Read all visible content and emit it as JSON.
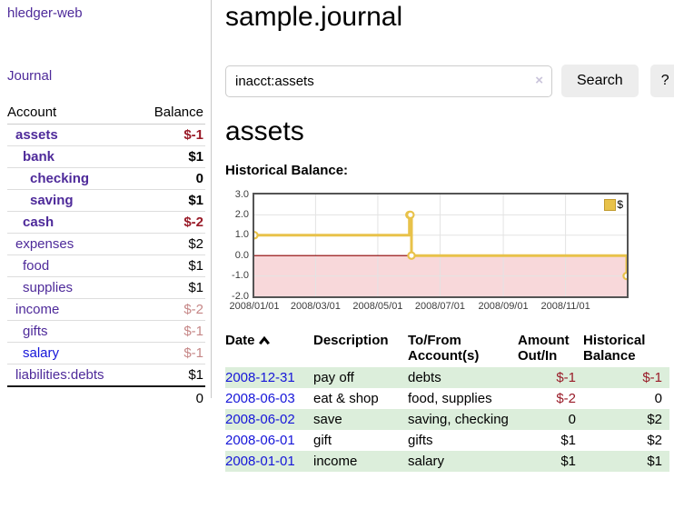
{
  "app": {
    "title": "hledger-web",
    "nav_journal": "Journal"
  },
  "colors": {
    "link_purple": "#4e2a9a",
    "link_blue": "#1616d9",
    "negative_strong": "#991b28",
    "negative_soft": "#c68787",
    "row_stripe_green": "#dceedb",
    "chart_line_gold": "#e8c24a",
    "chart_negative_region_pink": "#f8d8da",
    "chart_zero_line_red": "#8b0000",
    "chart_border_gray": "#545454",
    "button_gray": "#ededed"
  },
  "sidebar": {
    "accounts_table": {
      "headers": {
        "account": "Account",
        "balance": "Balance"
      },
      "rows": [
        {
          "account": "assets",
          "balance": "$-1",
          "level": 1,
          "bold": true,
          "balance_class": "neg-strong",
          "link_class": "purple"
        },
        {
          "account": "bank",
          "balance": "$1",
          "level": 2,
          "bold": true,
          "balance_class": "",
          "link_class": "purple"
        },
        {
          "account": "checking",
          "balance": "0",
          "level": 3,
          "bold": true,
          "balance_class": "",
          "link_class": "purple"
        },
        {
          "account": "saving",
          "balance": "$1",
          "level": 3,
          "bold": true,
          "balance_class": "",
          "link_class": "purple"
        },
        {
          "account": "cash",
          "balance": "$-2",
          "level": 2,
          "bold": true,
          "balance_class": "neg-strong",
          "link_class": "purple"
        },
        {
          "account": "expenses",
          "balance": "$2",
          "level": 1,
          "bold": false,
          "balance_class": "",
          "link_class": "purple"
        },
        {
          "account": "food",
          "balance": "$1",
          "level": 2,
          "bold": false,
          "balance_class": "",
          "link_class": "purple"
        },
        {
          "account": "supplies",
          "balance": "$1",
          "level": 2,
          "bold": false,
          "balance_class": "",
          "link_class": "purple"
        },
        {
          "account": "income",
          "balance": "$-2",
          "level": 1,
          "bold": false,
          "balance_class": "neg-soft",
          "link_class": "purple"
        },
        {
          "account": "gifts",
          "balance": "$-1",
          "level": 2,
          "bold": false,
          "balance_class": "neg-soft",
          "link_class": "purple"
        },
        {
          "account": "salary",
          "balance": "$-1",
          "level": 2,
          "bold": false,
          "balance_class": "neg-soft",
          "link_class": "blue"
        },
        {
          "account": "liabilities:debts",
          "balance": "$1",
          "level": 1,
          "bold": false,
          "balance_class": "",
          "link_class": "purple"
        }
      ],
      "total": "0"
    }
  },
  "main": {
    "title": "sample.journal",
    "search": {
      "value": "inacct:assets",
      "clear_icon": "×",
      "button_label": "Search",
      "help_label": "?"
    },
    "account_heading": "assets",
    "chart_title": "Historical Balance:"
  },
  "chart_data": {
    "type": "line",
    "style": "step",
    "title": "Historical Balance:",
    "series": [
      {
        "name": "$",
        "color": "#e8c24a",
        "points": [
          {
            "date": "2008-01-01",
            "value": 1
          },
          {
            "date": "2008-06-01",
            "value": 2
          },
          {
            "date": "2008-06-02",
            "value": 2
          },
          {
            "date": "2008-06-03",
            "value": 0
          },
          {
            "date": "2008-12-31",
            "value": -1
          }
        ]
      }
    ],
    "x_range": {
      "start": "2008-01-01",
      "end": "2008-12-31",
      "days": 365
    },
    "x_ticks": [
      "2008/01/01",
      "2008/03/01",
      "2008/05/01",
      "2008/07/01",
      "2008/09/01",
      "2008/11/01"
    ],
    "y_ticks": [
      "3.0",
      "2.0",
      "1.0",
      "0.0",
      "-1.0",
      "-2.0"
    ],
    "ylim": [
      -2,
      3
    ],
    "grid": true,
    "legend": {
      "label": "$",
      "position": "top-right"
    },
    "negative_region_color": "#f8d8da",
    "zero_line_color": "#8b0000"
  },
  "register": {
    "headers": {
      "date": "Date",
      "sort_indicator": "chevron-up",
      "description": "Description",
      "tofrom": "To/From Account(s)",
      "amount": "Amount Out/In",
      "balance": "Historical Balance"
    },
    "rows": [
      {
        "date": "2008-12-31",
        "description": "pay off",
        "accounts": "debts",
        "amount": "$-1",
        "amount_neg": true,
        "balance": "$-1",
        "balance_neg": true,
        "striped": true
      },
      {
        "date": "2008-06-03",
        "description": "eat & shop",
        "accounts": "food, supplies",
        "amount": "$-2",
        "amount_neg": true,
        "balance": "0",
        "balance_neg": false,
        "striped": false
      },
      {
        "date": "2008-06-02",
        "description": "save",
        "accounts": "saving, checking",
        "amount": "0",
        "amount_neg": false,
        "balance": "$2",
        "balance_neg": false,
        "striped": true
      },
      {
        "date": "2008-06-01",
        "description": "gift",
        "accounts": "gifts",
        "amount": "$1",
        "amount_neg": false,
        "balance": "$2",
        "balance_neg": false,
        "striped": false
      },
      {
        "date": "2008-01-01",
        "description": "income",
        "accounts": "salary",
        "amount": "$1",
        "amount_neg": false,
        "balance": "$1",
        "balance_neg": false,
        "striped": true
      }
    ]
  }
}
